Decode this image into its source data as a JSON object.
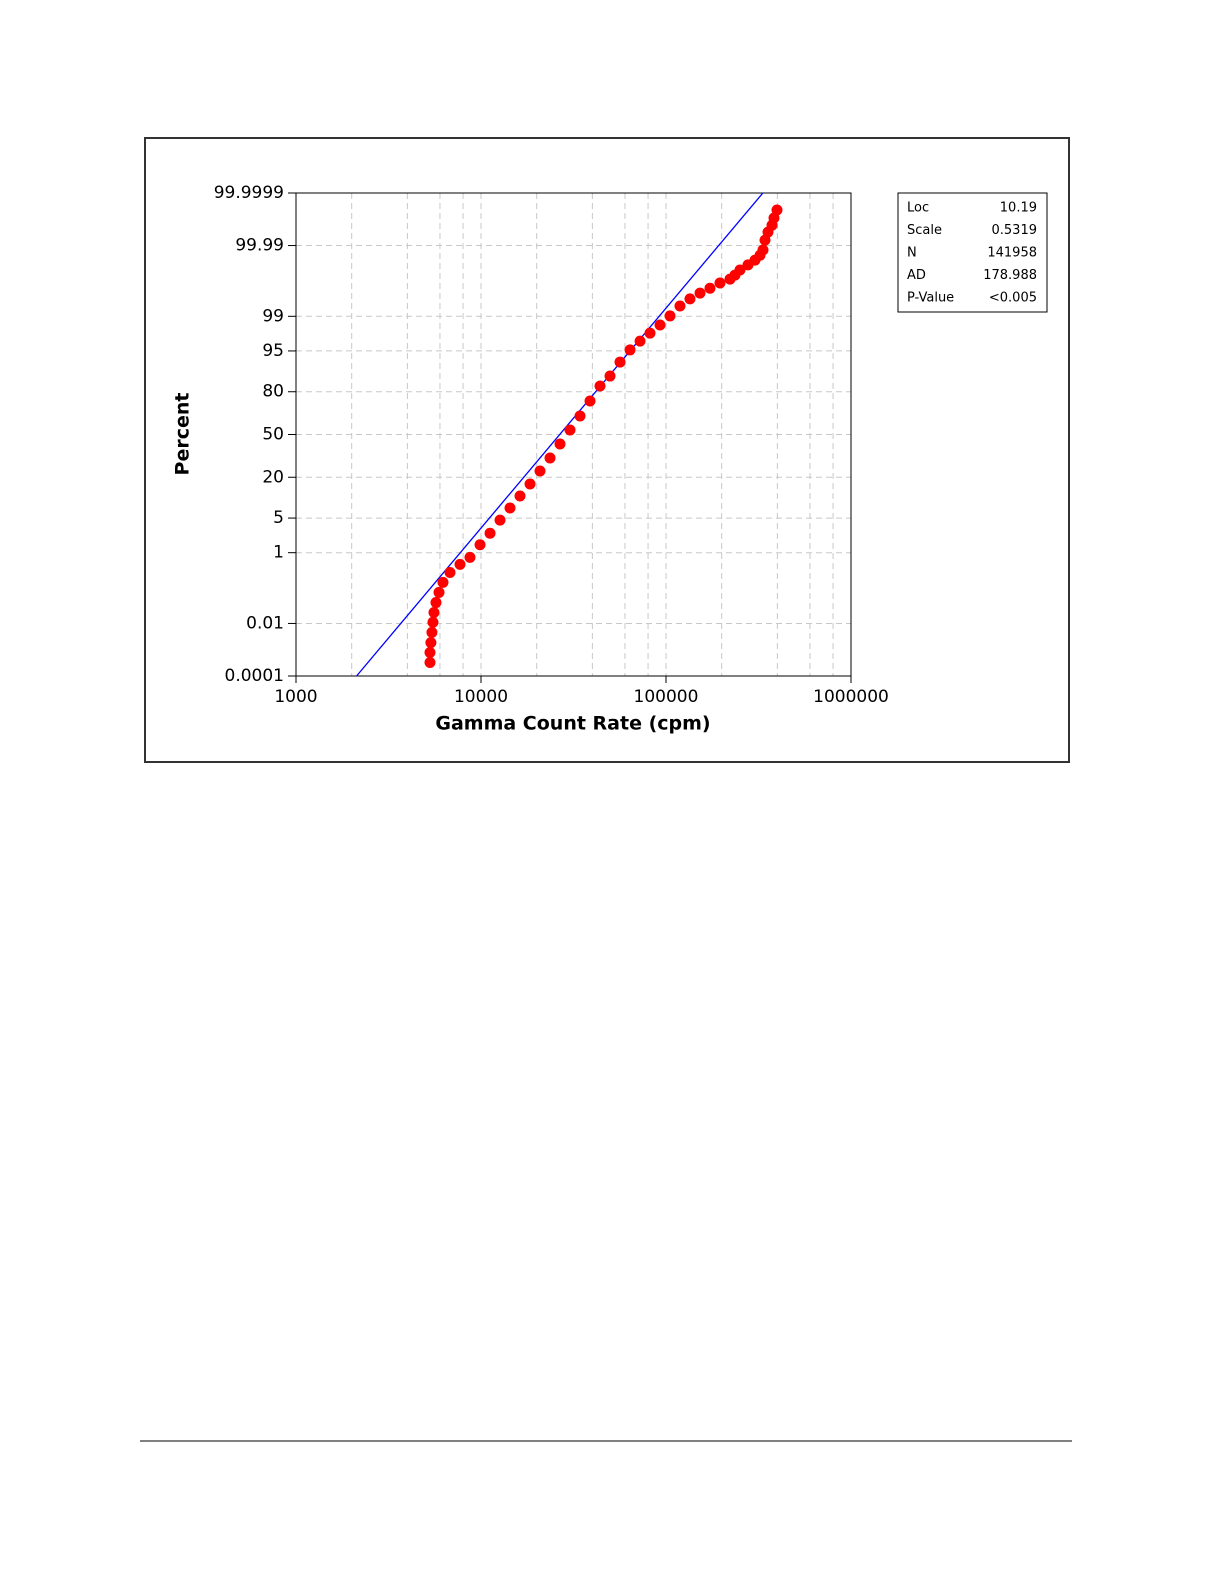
{
  "chart_data": {
    "type": "probability-scatter",
    "xlabel": "Gamma Count Rate (cpm)",
    "ylabel": "Percent",
    "xscale": "log",
    "yscale": "probability",
    "xlim": [
      1000,
      1000000
    ],
    "xticks": [
      1000,
      10000,
      100000,
      1000000
    ],
    "xgrid": [
      2000,
      4000,
      6000,
      8000,
      20000,
      40000,
      60000,
      80000,
      200000,
      400000,
      600000,
      800000
    ],
    "ylim": [
      0.0001,
      99.9999
    ],
    "yticks": [
      0.0001,
      0.01,
      1,
      5,
      20,
      50,
      80,
      95,
      99,
      99.99,
      99.9999
    ],
    "grid": true,
    "fit_color": "#0000ff",
    "series": [
      {
        "color": "#ff0000",
        "x": [
          5300,
          5300,
          5360,
          5430,
          5500,
          5570,
          5710,
          5930,
          6230,
          6800,
          7700,
          8720,
          9880,
          11190,
          12670,
          14350,
          16250,
          18410,
          20840,
          23610,
          26730,
          30280,
          34290,
          38840,
          43990,
          49820,
          56420,
          63900,
          72370,
          81940,
          92820,
          105100,
          119000,
          134800,
          152700,
          172900,
          195800,
          221800,
          236000,
          251200,
          277500,
          302800,
          322200,
          334500,
          342900,
          355900,
          374100,
          383500,
          398100
        ],
        "values": [
          0.00036,
          0.00089,
          0.0021,
          0.0049,
          0.011,
          0.023,
          0.047,
          0.094,
          0.18,
          0.33,
          0.53,
          0.78,
          1.5,
          2.6,
          4.6,
          7.4,
          11.3,
          16.5,
          23.6,
          32.2,
          42.6,
          53.5,
          64.2,
          74.5,
          83,
          87.5,
          92.3,
          95.2,
          96.7,
          97.7,
          98.44,
          99.02,
          99.43,
          99.62,
          99.73,
          99.8,
          99.857,
          99.889,
          99.915,
          99.94,
          99.958,
          99.97,
          99.979,
          99.9859,
          99.9935,
          99.9966,
          99.9981,
          99.99898,
          99.999504
        ]
      }
    ],
    "stats": [
      {
        "label": "Loc",
        "value": 10.19
      },
      {
        "label": "Scale",
        "value": 0.5319
      },
      {
        "label": "N",
        "value": 141958
      },
      {
        "label": "AD",
        "value": 178.988
      },
      {
        "label": "P-Value",
        "value": "<0.005"
      }
    ]
  }
}
